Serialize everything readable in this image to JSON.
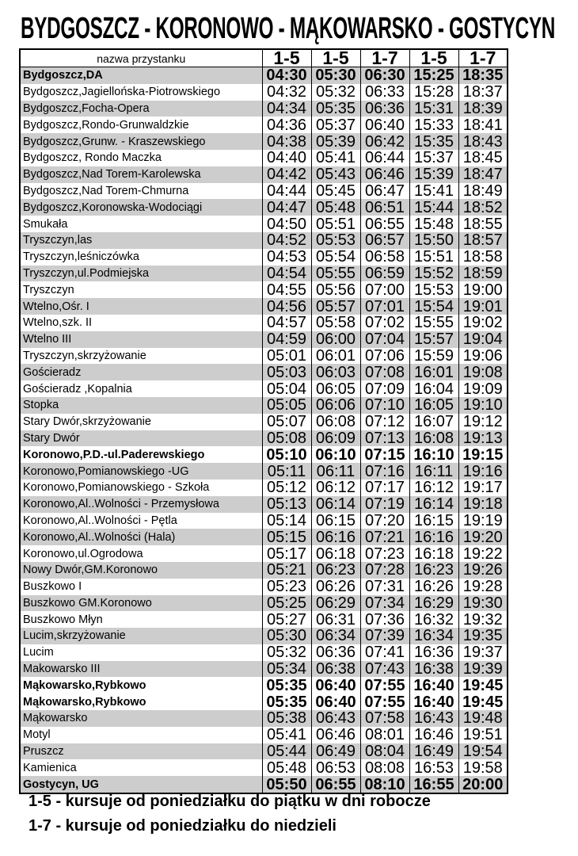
{
  "title": "BYDGOSZCZ -  KORONOWO - MĄKOWARSKO - GOSTYCYN",
  "colors": {
    "shaded_row": "#cdcdcd",
    "border": "#000000"
  },
  "table": {
    "name_header": "nazwa przystanku",
    "day_headers": [
      "1-5",
      "1-5",
      "1-7",
      "1-5",
      "1-7"
    ],
    "rows": [
      {
        "name": "Bydgoszcz,DA",
        "times": [
          "04:30",
          "05:30",
          "06:30",
          "15:25",
          "18:35"
        ],
        "shaded": true,
        "bold": true
      },
      {
        "name": "Bydgoszcz,Jagiellońska-Piotrowskiego",
        "times": [
          "04:32",
          "05:32",
          "06:33",
          "15:28",
          "18:37"
        ],
        "shaded": false,
        "bold": false
      },
      {
        "name": "Bydgoszcz,Focha-Opera",
        "times": [
          "04:34",
          "05:35",
          "06:36",
          "15:31",
          "18:39"
        ],
        "shaded": true,
        "bold": false
      },
      {
        "name": "Bydgoszcz,Rondo-Grunwaldzkie",
        "times": [
          "04:36",
          "05:37",
          "06:40",
          "15:33",
          "18:41"
        ],
        "shaded": false,
        "bold": false
      },
      {
        "name": "Bydgoszcz,Grunw. - Kraszewskiego",
        "times": [
          "04:38",
          "05:39",
          "06:42",
          "15:35",
          "18:43"
        ],
        "shaded": true,
        "bold": false
      },
      {
        "name": "Bydgoszcz, Rondo Maczka",
        "times": [
          "04:40",
          "05:41",
          "06:44",
          "15:37",
          "18:45"
        ],
        "shaded": false,
        "bold": false
      },
      {
        "name": "Bydgoszcz,Nad Torem-Karolewska",
        "times": [
          "04:42",
          "05:43",
          "06:46",
          "15:39",
          "18:47"
        ],
        "shaded": true,
        "bold": false
      },
      {
        "name": "Bydgoszcz,Nad Torem-Chmurna",
        "times": [
          "04:44",
          "05:45",
          "06:47",
          "15:41",
          "18:49"
        ],
        "shaded": false,
        "bold": false
      },
      {
        "name": "Bydgoszcz,Koronowska-Wodociągi",
        "times": [
          "04:47",
          "05:48",
          "06:51",
          "15:44",
          "18:52"
        ],
        "shaded": true,
        "bold": false
      },
      {
        "name": "Smukała",
        "times": [
          "04:50",
          "05:51",
          "06:55",
          "15:48",
          "18:55"
        ],
        "shaded": false,
        "bold": false
      },
      {
        "name": "Tryszczyn,las",
        "times": [
          "04:52",
          "05:53",
          "06:57",
          "15:50",
          "18:57"
        ],
        "shaded": true,
        "bold": false
      },
      {
        "name": "Tryszczyn,leśniczówka",
        "times": [
          "04:53",
          "05:54",
          "06:58",
          "15:51",
          "18:58"
        ],
        "shaded": false,
        "bold": false
      },
      {
        "name": "Tryszczyn,ul.Podmiejska",
        "times": [
          "04:54",
          "05:55",
          "06:59",
          "15:52",
          "18:59"
        ],
        "shaded": true,
        "bold": false
      },
      {
        "name": "Tryszczyn",
        "times": [
          "04:55",
          "05:56",
          "07:00",
          "15:53",
          "19:00"
        ],
        "shaded": false,
        "bold": false
      },
      {
        "name": "Wtelno,Ośr. I",
        "times": [
          "04:56",
          "05:57",
          "07:01",
          "15:54",
          "19:01"
        ],
        "shaded": true,
        "bold": false
      },
      {
        "name": "Wtelno,szk. II",
        "times": [
          "04:57",
          "05:58",
          "07:02",
          "15:55",
          "19:02"
        ],
        "shaded": false,
        "bold": false
      },
      {
        "name": "Wtelno III",
        "times": [
          "04:59",
          "06:00",
          "07:04",
          "15:57",
          "19:04"
        ],
        "shaded": true,
        "bold": false
      },
      {
        "name": "Tryszczyn,skrzyżowanie",
        "times": [
          "05:01",
          "06:01",
          "07:06",
          "15:59",
          "19:06"
        ],
        "shaded": false,
        "bold": false
      },
      {
        "name": "Gościeradz",
        "times": [
          "05:03",
          "06:03",
          "07:08",
          "16:01",
          "19:08"
        ],
        "shaded": true,
        "bold": false
      },
      {
        "name": "Gościeradz ,Kopalnia",
        "times": [
          "05:04",
          "06:05",
          "07:09",
          "16:04",
          "19:09"
        ],
        "shaded": false,
        "bold": false
      },
      {
        "name": "Stopka",
        "times": [
          "05:05",
          "06:06",
          "07:10",
          "16:05",
          "19:10"
        ],
        "shaded": true,
        "bold": false
      },
      {
        "name": "Stary Dwór,skrzyżowanie",
        "times": [
          "05:07",
          "06:08",
          "07:12",
          "16:07",
          "19:12"
        ],
        "shaded": false,
        "bold": false
      },
      {
        "name": "Stary Dwór",
        "times": [
          "05:08",
          "06:09",
          "07:13",
          "16:08",
          "19:13"
        ],
        "shaded": true,
        "bold": false
      },
      {
        "name": "Koronowo,P.D.-ul.Paderewskiego",
        "times": [
          "05:10",
          "06:10",
          "07:15",
          "16:10",
          "19:15"
        ],
        "shaded": false,
        "bold": true
      },
      {
        "name": "Koronowo,Pomianowskiego -UG",
        "times": [
          "05:11",
          "06:11",
          "07:16",
          "16:11",
          "19:16"
        ],
        "shaded": true,
        "bold": false
      },
      {
        "name": "Koronowo,Pomianowskiego - Szkoła",
        "times": [
          "05:12",
          "06:12",
          "07:17",
          "16:12",
          "19:17"
        ],
        "shaded": false,
        "bold": false
      },
      {
        "name": "Koronowo,Al..Wolności - Przemysłowa",
        "times": [
          "05:13",
          "06:14",
          "07:19",
          "16:14",
          "19:18"
        ],
        "shaded": true,
        "bold": false
      },
      {
        "name": "Koronowo,Al..Wolności - Pętla",
        "times": [
          "05:14",
          "06:15",
          "07:20",
          "16:15",
          "19:19"
        ],
        "shaded": false,
        "bold": false
      },
      {
        "name": "Koronowo,Al..Wolności (Hala)",
        "times": [
          "05:15",
          "06:16",
          "07:21",
          "16:16",
          "19:20"
        ],
        "shaded": true,
        "bold": false
      },
      {
        "name": "Koronowo,ul.Ogrodowa",
        "times": [
          "05:17",
          "06:18",
          "07:23",
          "16:18",
          "19:22"
        ],
        "shaded": false,
        "bold": false
      },
      {
        "name": "Nowy Dwór,GM.Koronowo",
        "times": [
          "05:21",
          "06:23",
          "07:28",
          "16:23",
          "19:26"
        ],
        "shaded": true,
        "bold": false
      },
      {
        "name": "Buszkowo I",
        "times": [
          "05:23",
          "06:26",
          "07:31",
          "16:26",
          "19:28"
        ],
        "shaded": false,
        "bold": false
      },
      {
        "name": "Buszkowo GM.Koronowo",
        "times": [
          "05:25",
          "06:29",
          "07:34",
          "16:29",
          "19:30"
        ],
        "shaded": true,
        "bold": false
      },
      {
        "name": "Buszkowo Młyn",
        "times": [
          "05:27",
          "06:31",
          "07:36",
          "16:32",
          "19:32"
        ],
        "shaded": false,
        "bold": false
      },
      {
        "name": "Lucim,skrzyżowanie",
        "times": [
          "05:30",
          "06:34",
          "07:39",
          "16:34",
          "19:35"
        ],
        "shaded": true,
        "bold": false
      },
      {
        "name": "Lucim",
        "times": [
          "05:32",
          "06:36",
          "07:41",
          "16:36",
          "19:37"
        ],
        "shaded": false,
        "bold": false
      },
      {
        "name": "Makowarsko III",
        "times": [
          "05:34",
          "06:38",
          "07:43",
          "16:38",
          "19:39"
        ],
        "shaded": true,
        "bold": false
      },
      {
        "name": "Mąkowarsko,Rybkowo",
        "times": [
          "05:35",
          "06:40",
          "07:55",
          "16:40",
          "19:45"
        ],
        "shaded": false,
        "bold": true
      },
      {
        "name": "Mąkowarsko,Rybkowo",
        "times": [
          "05:35",
          "06:40",
          "07:55",
          "16:40",
          "19:45"
        ],
        "shaded": false,
        "bold": true
      },
      {
        "name": "Mąkowarsko",
        "times": [
          "05:38",
          "06:43",
          "07:58",
          "16:43",
          "19:48"
        ],
        "shaded": true,
        "bold": false
      },
      {
        "name": "Motyl",
        "times": [
          "05:41",
          "06:46",
          "08:01",
          "16:46",
          "19:51"
        ],
        "shaded": false,
        "bold": false
      },
      {
        "name": "Pruszcz",
        "times": [
          "05:44",
          "06:49",
          "08:04",
          "16:49",
          "19:54"
        ],
        "shaded": true,
        "bold": false
      },
      {
        "name": "Kamienica",
        "times": [
          "05:48",
          "06:53",
          "08:08",
          "16:53",
          "19:58"
        ],
        "shaded": false,
        "bold": false
      },
      {
        "name": "Gostycyn, UG",
        "times": [
          "05:50",
          "06:55",
          "08:10",
          "16:55",
          "20:00"
        ],
        "shaded": true,
        "bold": true
      }
    ]
  },
  "notes": [
    "1-5 - kursuje od poniedziałku do piątku w dni robocze",
    "1-7 - kursuje od poniedziałku do niedzieli"
  ]
}
